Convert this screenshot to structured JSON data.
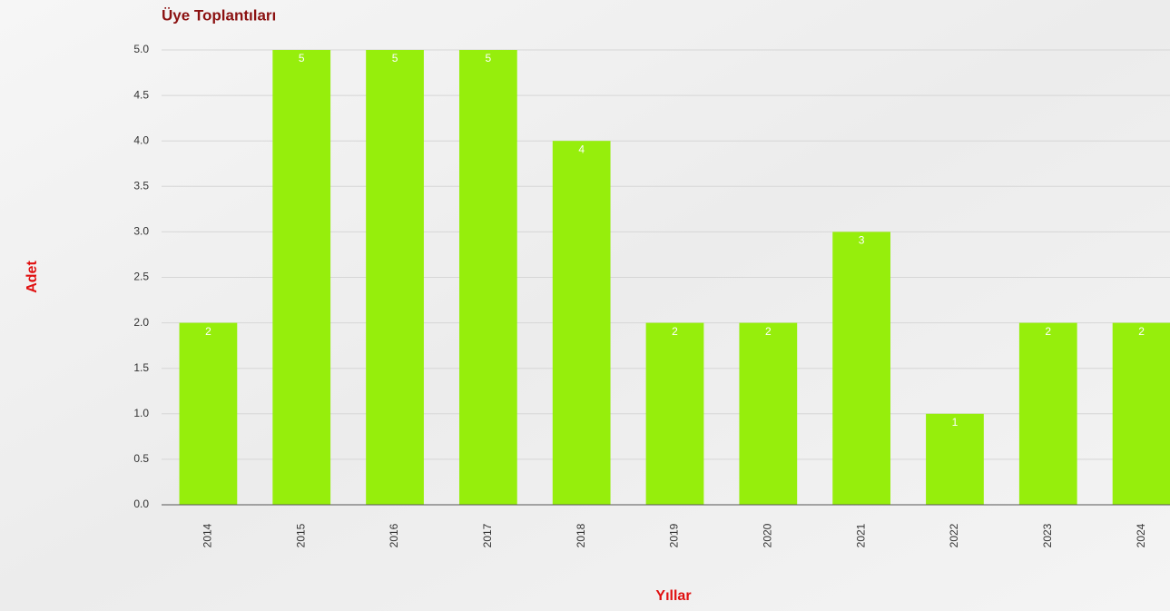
{
  "chart_data": {
    "type": "bar",
    "title": "Üye Toplantıları",
    "y_label": "Adet",
    "x_label": "Yıllar",
    "categories": [
      "2014",
      "2015",
      "2016",
      "2017",
      "2018",
      "2019",
      "2020",
      "2021",
      "2022",
      "2023",
      "2024"
    ],
    "values": [
      2,
      5,
      5,
      5,
      4,
      2,
      2,
      3,
      1,
      2,
      2
    ],
    "color": "#96ee0c",
    "ylim": [
      0,
      5
    ],
    "yticks": [
      {
        "value": 0,
        "label": "0.0"
      },
      {
        "value": 0.5,
        "label": "0.5"
      },
      {
        "value": 1,
        "label": "1.0"
      },
      {
        "value": 1.5,
        "label": "1.5"
      },
      {
        "value": 2,
        "label": "2.0"
      },
      {
        "value": 2.5,
        "label": "2.5"
      },
      {
        "value": 3,
        "label": "3.0"
      },
      {
        "value": 3.5,
        "label": "3.5"
      },
      {
        "value": 4,
        "label": "4.0"
      },
      {
        "value": 4.5,
        "label": "4.5"
      },
      {
        "value": 5,
        "label": "5.0"
      }
    ],
    "grid": true
  }
}
